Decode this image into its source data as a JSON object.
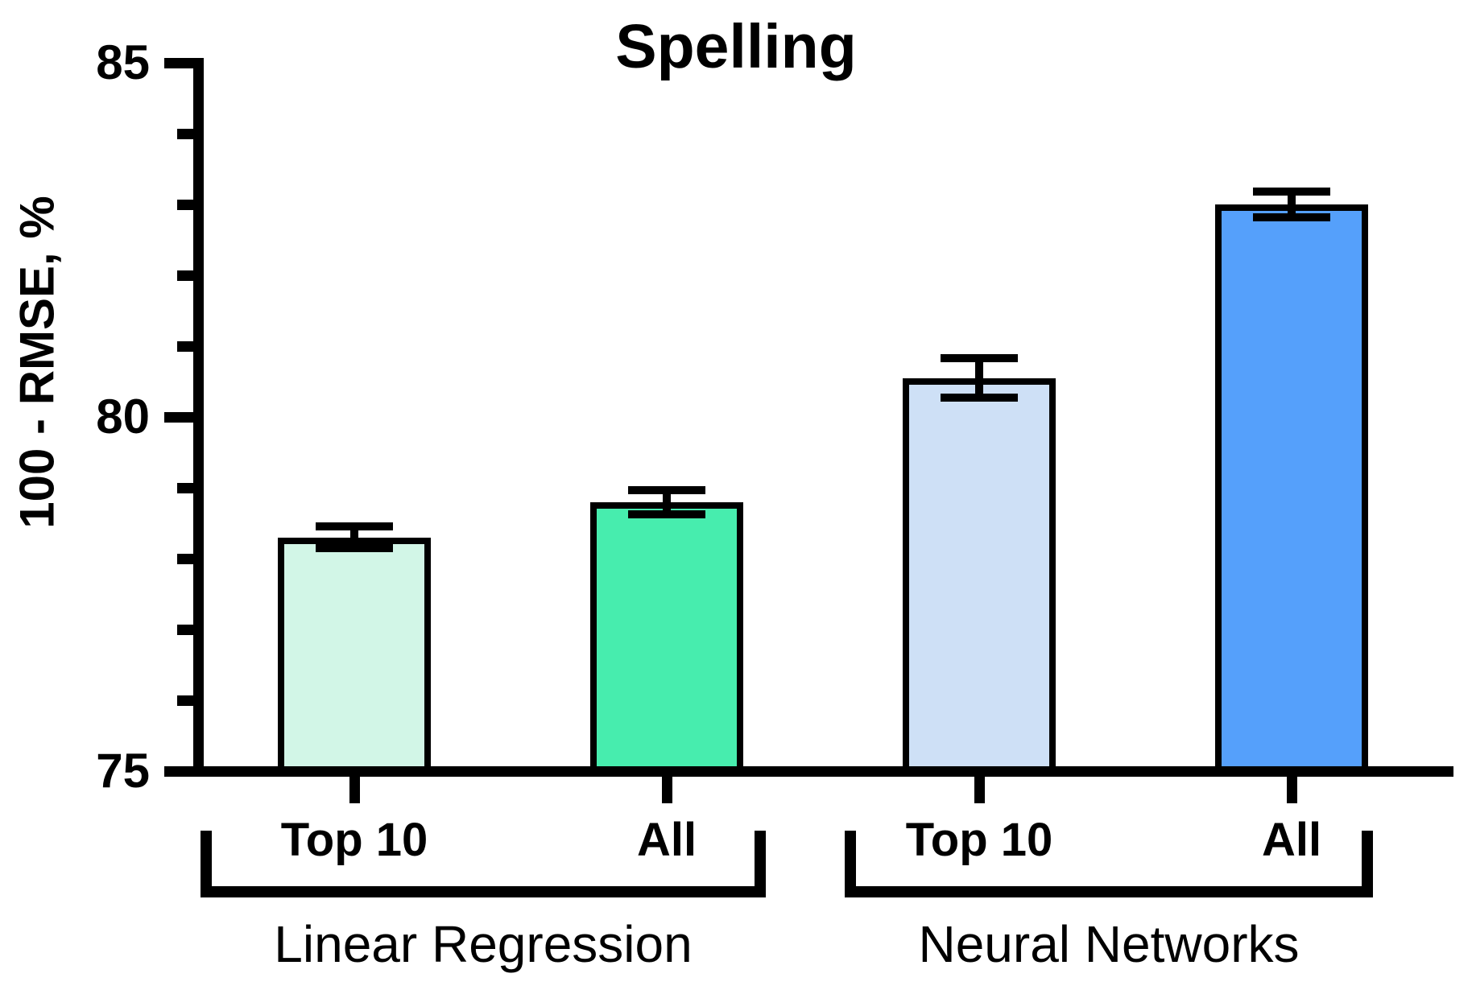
{
  "chart_data": {
    "type": "bar",
    "title": "Spelling",
    "ylabel": "100 - RMSE, %",
    "ylim": [
      75,
      85
    ],
    "yticks_major": [
      75,
      80,
      85
    ],
    "ytick_minor_step": 1,
    "grid": false,
    "legend": "none",
    "background": "#FFFFFF",
    "axis_color": "#000000",
    "bar_border_color": "#000000",
    "error_bar_color": "#000000",
    "categories": [
      "Top 10",
      "All",
      "Top 10",
      "All"
    ],
    "groups": [
      {
        "label": "Linear Regression",
        "bars": [
          {
            "category": "Top 10",
            "value": 78.3,
            "error": 0.15,
            "color": "#D2F6E7"
          },
          {
            "category": "All",
            "value": 78.8,
            "error": 0.17,
            "color": "#47EDAE"
          }
        ]
      },
      {
        "label": "Neural Networks",
        "bars": [
          {
            "category": "Top 10",
            "value": 80.55,
            "error": 0.28,
            "color": "#CEE0F6"
          },
          {
            "category": "All",
            "value": 83.0,
            "error": 0.18,
            "color": "#55A0FB"
          }
        ]
      }
    ]
  }
}
